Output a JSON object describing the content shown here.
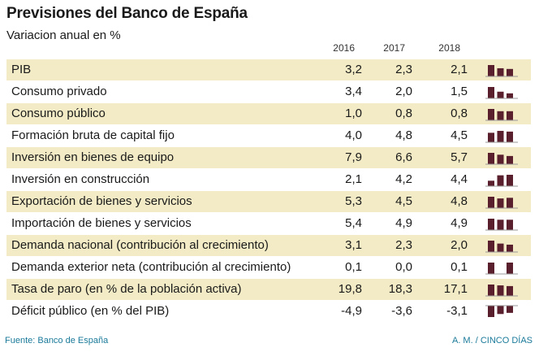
{
  "title": "Previsiones del Banco de España",
  "subtitle": "Variacion anual en %",
  "source": "Fuente: Banco de España",
  "credit": "A. M. / CINCO DÍAS",
  "colors": {
    "shade": "#f2ebc5",
    "bar": "#5a1f2c",
    "baseline": "#999999",
    "footer": "#1a7a9a"
  },
  "chart_data": {
    "type": "table",
    "columns": [
      "2016",
      "2017",
      "2018"
    ],
    "rows": [
      {
        "label": "PIB",
        "values": [
          3.2,
          2.3,
          2.1
        ],
        "display": [
          "3,2",
          "2,3",
          "2,1"
        ]
      },
      {
        "label": "Consumo privado",
        "values": [
          3.4,
          2.0,
          1.5
        ],
        "display": [
          "3,4",
          "2,0",
          "1,5"
        ]
      },
      {
        "label": "Consumo público",
        "values": [
          1.0,
          0.8,
          0.8
        ],
        "display": [
          "1,0",
          "0,8",
          "0,8"
        ]
      },
      {
        "label": "Formación bruta de capital fijo",
        "values": [
          4.0,
          4.8,
          4.5
        ],
        "display": [
          "4,0",
          "4,8",
          "4,5"
        ]
      },
      {
        "label": "Inversión en bienes de equipo",
        "values": [
          7.9,
          6.6,
          5.7
        ],
        "display": [
          "7,9",
          "6,6",
          "5,7"
        ]
      },
      {
        "label": "Inversión en construcción",
        "values": [
          2.1,
          4.2,
          4.4
        ],
        "display": [
          "2,1",
          "4,2",
          "4,4"
        ]
      },
      {
        "label": "Exportación de bienes y servicios",
        "values": [
          5.3,
          4.5,
          4.8
        ],
        "display": [
          "5,3",
          "4,5",
          "4,8"
        ]
      },
      {
        "label": "Importación de bienes y servicios",
        "values": [
          5.4,
          4.9,
          4.9
        ],
        "display": [
          "5,4",
          "4,9",
          "4,9"
        ]
      },
      {
        "label": "Demanda nacional (contribución al crecimiento)",
        "values": [
          3.1,
          2.3,
          2.0
        ],
        "display": [
          "3,1",
          "2,3",
          "2,0"
        ]
      },
      {
        "label": "Demanda exterior neta (contribución al crecimiento)",
        "values": [
          0.1,
          0.0,
          0.1
        ],
        "display": [
          "0,1",
          "0,0",
          "0,1"
        ]
      },
      {
        "label": "Tasa de paro (en % de la población activa)",
        "values": [
          19.8,
          18.3,
          17.1
        ],
        "display": [
          "19,8",
          "18,3",
          "17,1"
        ]
      },
      {
        "label": "Déficit público (en % del PIB)",
        "values": [
          -4.9,
          -3.6,
          -3.1
        ],
        "display": [
          "-4,9",
          "-3,6",
          "-3,1"
        ]
      }
    ]
  }
}
